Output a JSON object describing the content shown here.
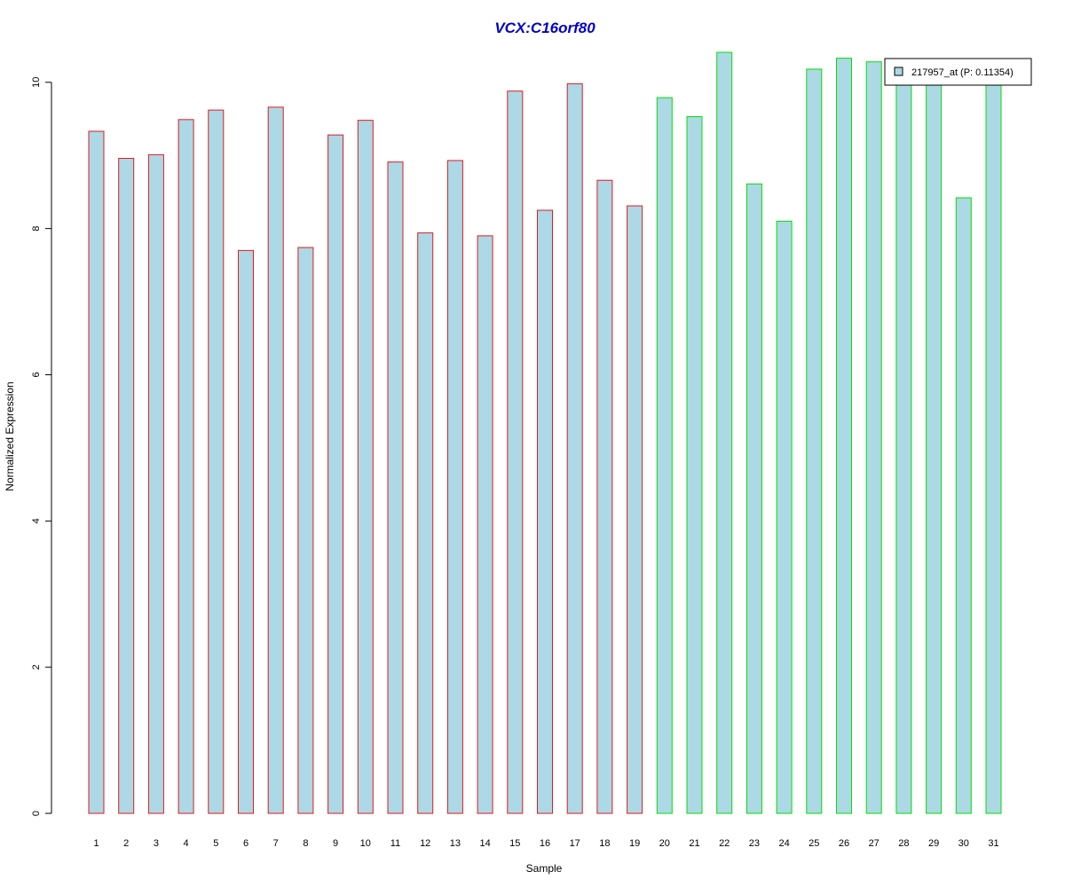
{
  "chart_data": {
    "type": "bar",
    "title": "VCX:C16orf80",
    "xlabel": "Sample",
    "ylabel": "Normalized Expression",
    "categories": [
      "1",
      "2",
      "3",
      "4",
      "5",
      "6",
      "7",
      "8",
      "9",
      "10",
      "11",
      "12",
      "13",
      "14",
      "15",
      "16",
      "17",
      "18",
      "19",
      "20",
      "21",
      "22",
      "23",
      "24",
      "25",
      "26",
      "27",
      "28",
      "29",
      "30",
      "31"
    ],
    "series": [
      {
        "name": "217957_at (P: 0.11354)",
        "values": [
          9.33,
          8.96,
          9.01,
          9.49,
          9.62,
          7.7,
          9.66,
          7.74,
          9.28,
          9.48,
          8.91,
          7.94,
          8.93,
          7.9,
          9.88,
          8.25,
          9.98,
          8.66,
          8.31,
          9.79,
          9.53,
          10.41,
          8.61,
          8.1,
          10.18,
          10.33,
          10.28,
          10.05,
          10.1,
          8.42,
          10.02
        ]
      }
    ],
    "groups": [
      {
        "samples": "1-19",
        "border_color": "#e31a1c"
      },
      {
        "samples": "20-31",
        "border_color": "#00e000"
      }
    ],
    "fill_color": "#add8e6",
    "title_color": "#0000cc",
    "yticks": [
      0,
      2,
      4,
      6,
      8,
      10
    ],
    "ylim": [
      0,
      10.41
    ],
    "legend_position": "top-right",
    "grid": false
  }
}
